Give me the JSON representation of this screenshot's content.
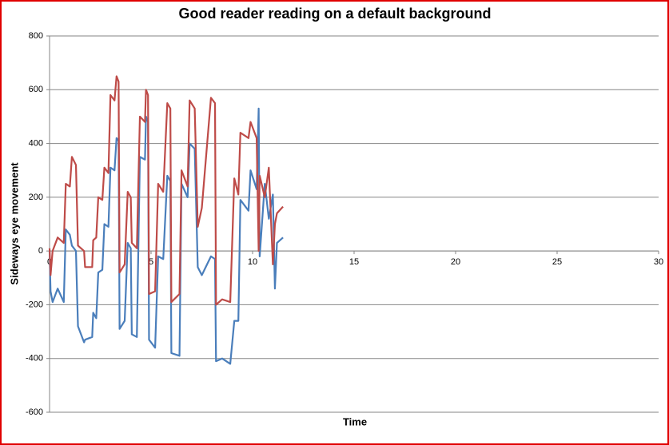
{
  "chart_data": {
    "type": "line",
    "title": "Good reader reading on a default background",
    "x_label": "Time",
    "y_label": "Sideways eye movement",
    "x": [
      0,
      0.05,
      0.15,
      0.4,
      0.7,
      0.8,
      1.0,
      1.1,
      1.3,
      1.4,
      1.7,
      1.75,
      2.1,
      2.15,
      2.3,
      2.4,
      2.6,
      2.7,
      2.9,
      3.0,
      3.2,
      3.3,
      3.4,
      3.45,
      3.7,
      3.85,
      4.0,
      4.05,
      4.3,
      4.45,
      4.7,
      4.75,
      4.85,
      4.9,
      5.2,
      5.35,
      5.6,
      5.8,
      5.95,
      6.0,
      6.4,
      6.5,
      6.8,
      6.9,
      7.15,
      7.3,
      7.5,
      7.95,
      8.15,
      8.2,
      8.5,
      8.9,
      9.1,
      9.3,
      9.4,
      9.8,
      9.9,
      10.2,
      10.3,
      10.35,
      10.6,
      10.8,
      11.0,
      11.1,
      11.2,
      11.5
    ],
    "series": [
      {
        "color": "#4a7ebb",
        "values": [
          0,
          -150,
          -190,
          -140,
          -190,
          80,
          60,
          20,
          0,
          -280,
          -340,
          -330,
          -320,
          -230,
          -250,
          -80,
          -70,
          100,
          90,
          310,
          300,
          420,
          410,
          -290,
          -260,
          30,
          10,
          -310,
          -320,
          350,
          340,
          500,
          480,
          -330,
          -360,
          -20,
          -30,
          280,
          260,
          -380,
          -390,
          250,
          200,
          400,
          380,
          -60,
          -90,
          -20,
          -30,
          -410,
          -400,
          -420,
          -260,
          -260,
          190,
          150,
          300,
          230,
          530,
          -20,
          250,
          120,
          210,
          -140,
          30,
          50
        ]
      },
      {
        "color": "#be4b48",
        "values": [
          10,
          -90,
          0,
          50,
          30,
          250,
          240,
          350,
          320,
          20,
          0,
          -60,
          -60,
          40,
          50,
          200,
          190,
          310,
          290,
          580,
          560,
          650,
          630,
          -80,
          -50,
          220,
          200,
          30,
          10,
          500,
          480,
          600,
          580,
          -160,
          -150,
          250,
          220,
          550,
          530,
          -190,
          -160,
          300,
          240,
          560,
          530,
          90,
          160,
          570,
          550,
          -200,
          -180,
          -190,
          270,
          210,
          440,
          420,
          480,
          420,
          0,
          280,
          200,
          310,
          -50,
          100,
          140,
          165
        ]
      }
    ],
    "xlim": [
      0,
      30
    ],
    "xticks": [
      0,
      5,
      10,
      15,
      20,
      25,
      30
    ],
    "ylim": [
      -600,
      800
    ],
    "yticks": [
      -600,
      -400,
      -200,
      0,
      200,
      400,
      600,
      800
    ],
    "grid": true
  }
}
